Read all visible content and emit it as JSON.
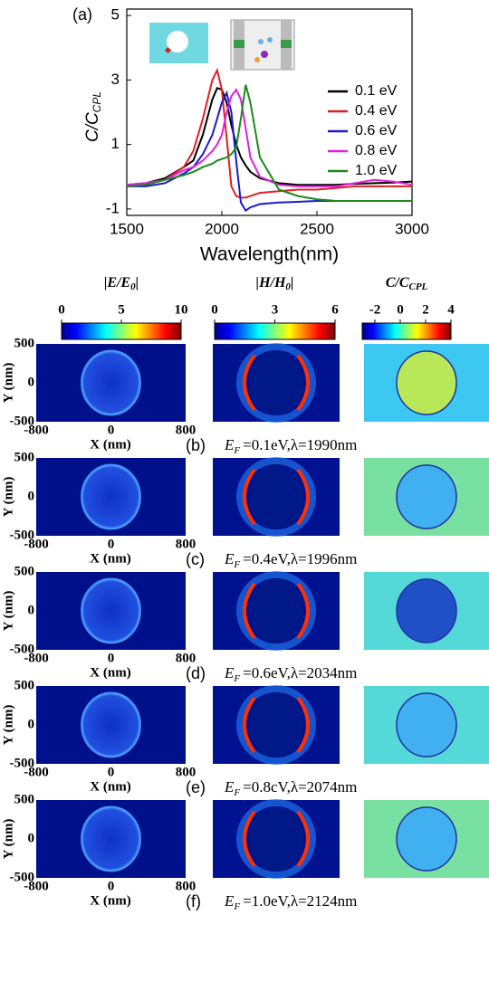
{
  "chart_data": {
    "type": "line",
    "panel_label": "(a)",
    "y_label": "C/C",
    "y_label_sub": "CPL",
    "x_label": "Wavelength(nm)",
    "xlim": [
      1500,
      3000
    ],
    "xticks": [
      1500,
      2000,
      2500,
      3000
    ],
    "ylim": [
      -1.2,
      5.2
    ],
    "yticks": [
      -1,
      1,
      3,
      5
    ],
    "legend": "right",
    "x": [
      1500,
      1600,
      1700,
      1800,
      1850,
      1900,
      1950,
      1975,
      2000,
      2025,
      2050,
      2075,
      2100,
      2125,
      2150,
      2200,
      2300,
      2400,
      2500,
      2600,
      2700,
      2800,
      2900,
      3000
    ],
    "series": [
      {
        "name": "0.1 eV",
        "color": "#000000",
        "values": [
          -0.25,
          -0.2,
          -0.05,
          0.3,
          0.5,
          1.3,
          2.4,
          2.75,
          2.7,
          2.3,
          1.6,
          1.0,
          0.6,
          0.35,
          0.15,
          -0.05,
          -0.2,
          -0.25,
          -0.25,
          -0.25,
          -0.22,
          -0.2,
          -0.18,
          -0.15
        ]
      },
      {
        "name": "0.4 eV",
        "color": "#e02020",
        "values": [
          -0.25,
          -0.2,
          -0.1,
          0.3,
          0.8,
          1.8,
          3.0,
          3.3,
          2.7,
          1.2,
          -0.3,
          -0.6,
          -0.65,
          -0.65,
          -0.6,
          -0.5,
          -0.45,
          -0.4,
          -0.4,
          -0.35,
          -0.3,
          -0.3,
          -0.3,
          -0.3
        ]
      },
      {
        "name": "0.6 eV",
        "color": "#1a1ad0",
        "values": [
          -0.3,
          -0.3,
          -0.2,
          0.1,
          0.3,
          0.7,
          1.3,
          1.8,
          2.3,
          2.6,
          2.0,
          0.5,
          -0.8,
          -1.05,
          -0.95,
          -0.85,
          -0.8,
          -0.78,
          -0.75,
          -0.75,
          -0.75,
          -0.75,
          -0.75,
          -0.75
        ]
      },
      {
        "name": "0.8 eV",
        "color": "#e020e0",
        "values": [
          -0.25,
          -0.2,
          -0.1,
          0.2,
          0.3,
          0.5,
          0.8,
          1.0,
          1.3,
          2.0,
          2.5,
          2.7,
          2.4,
          1.5,
          0.6,
          0.0,
          -0.25,
          -0.3,
          -0.3,
          -0.3,
          -0.2,
          -0.1,
          -0.15,
          -0.25
        ]
      },
      {
        "name": "1.0 eV",
        "color": "#1a8a1a",
        "values": [
          -0.3,
          -0.25,
          -0.1,
          0.05,
          0.15,
          0.3,
          0.4,
          0.5,
          0.55,
          0.6,
          0.7,
          0.9,
          1.8,
          2.85,
          2.3,
          0.6,
          -0.4,
          -0.6,
          -0.7,
          -0.75,
          -0.75,
          -0.75,
          -0.75,
          -0.75
        ]
      }
    ]
  },
  "colorbars": [
    {
      "title": "|E/E",
      "title_sub": "0",
      "title_tail": "|",
      "range": [
        0,
        10
      ],
      "ticks": [
        0,
        5,
        10
      ]
    },
    {
      "title": "|H/H",
      "title_sub": "0",
      "title_tail": "|",
      "range": [
        0,
        6
      ],
      "ticks": [
        0,
        3,
        6
      ]
    },
    {
      "title": "C/C",
      "title_sub": "CPL",
      "range": [
        -3,
        4
      ],
      "ticks": [
        -2,
        0,
        2,
        4
      ]
    }
  ],
  "map_axes": {
    "y_label": "Y (nm)",
    "x_label": "X (nm)",
    "ylim": [
      -500,
      500
    ],
    "yticks": [
      500,
      0,
      -500
    ],
    "xlim": [
      -800,
      800
    ],
    "xticks": [
      -800,
      0,
      800
    ]
  },
  "caption_symbol": "E",
  "caption_sub": "F",
  "rows": [
    {
      "label": "(b)",
      "caption": "=0.1eV,λ=1990nm"
    },
    {
      "label": "(c)",
      "caption": "=0.4eV,λ=1996nm"
    },
    {
      "label": "(d)",
      "caption": "=0.6eV,λ=2034nm"
    },
    {
      "label": "(e)",
      "caption": "=0.8cV,λ=2074nm"
    },
    {
      "label": "(f)",
      "caption": "=1.0eV,λ=2124nm"
    }
  ]
}
